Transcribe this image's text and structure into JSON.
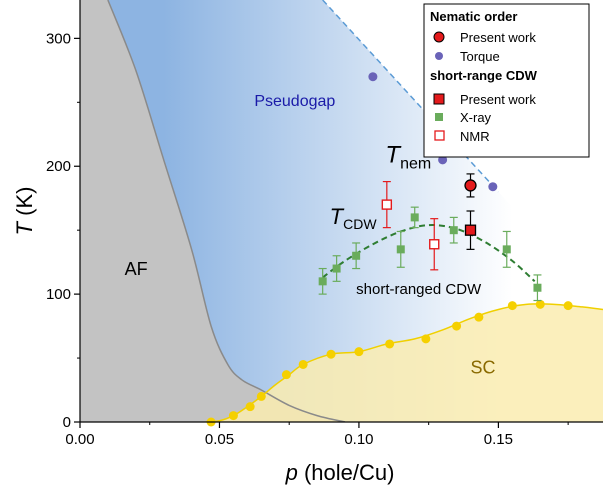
{
  "chart_data": {
    "type": "scatter",
    "x_axis": {
      "label_var": "p",
      "label_unit": " (hole/Cu)",
      "range": [
        0.0,
        0.1875
      ],
      "ticks": [
        0.0,
        0.05,
        0.1,
        0.15
      ],
      "tick_labels": [
        "0.00",
        "0.05",
        "0.10",
        "0.15"
      ]
    },
    "y_axis": {
      "label_var": "T",
      "label_unit": " (K)",
      "range": [
        0,
        330
      ],
      "ticks": [
        0,
        100,
        200,
        300
      ],
      "tick_labels": [
        "0",
        "100",
        "200",
        "300"
      ]
    },
    "grid": false,
    "regions": {
      "af": {
        "label": "AF",
        "boundary": [
          [
            0.01,
            330
          ],
          [
            0.02,
            275
          ],
          [
            0.03,
            205
          ],
          [
            0.04,
            135
          ],
          [
            0.047,
            75
          ],
          [
            0.053,
            45
          ],
          [
            0.058,
            33
          ],
          [
            0.065,
            25
          ],
          [
            0.075,
            13
          ],
          [
            0.085,
            5
          ],
          [
            0.095,
            0
          ]
        ]
      },
      "pseudogap": {
        "label": "Pseudogap",
        "boundary": [
          [
            0.087,
            330
          ],
          [
            0.15,
            180
          ]
        ]
      },
      "sc": {
        "label": "SC",
        "dome": [
          [
            0.045,
            0
          ],
          [
            0.05,
            1
          ],
          [
            0.055,
            5
          ],
          [
            0.06,
            12
          ],
          [
            0.065,
            20
          ],
          [
            0.07,
            29
          ],
          [
            0.075,
            37
          ],
          [
            0.08,
            45
          ],
          [
            0.09,
            53
          ],
          [
            0.1,
            55
          ],
          [
            0.11,
            61
          ],
          [
            0.12,
            65
          ],
          [
            0.13,
            72
          ],
          [
            0.14,
            81
          ],
          [
            0.15,
            88
          ],
          [
            0.16,
            92
          ],
          [
            0.17,
            92
          ],
          [
            0.18,
            90
          ],
          [
            0.1875,
            88
          ]
        ]
      }
    },
    "lines": {
      "t_nem": {
        "label_main": "T",
        "label_sub": "nem",
        "color": "#5b9bd5",
        "points": [
          [
            0.087,
            330
          ],
          [
            0.15,
            180
          ]
        ]
      },
      "t_cdw": {
        "label_main": "T",
        "label_sub": "CDW",
        "color": "#2e7d32",
        "points": [
          [
            0.087,
            113
          ],
          [
            0.095,
            126
          ],
          [
            0.105,
            139
          ],
          [
            0.115,
            149
          ],
          [
            0.125,
            154
          ],
          [
            0.135,
            151
          ],
          [
            0.145,
            141
          ],
          [
            0.155,
            126
          ],
          [
            0.163,
            110
          ]
        ]
      }
    },
    "region_text": {
      "cdw": "short-ranged CDW"
    },
    "series": [
      {
        "name": "Present work",
        "group": "Nematic order",
        "marker": "circle",
        "color": "#e41a1c",
        "edge": "#000000",
        "x": [
          0.14
        ],
        "y": [
          185
        ],
        "yerr": [
          9
        ]
      },
      {
        "name": "Torque",
        "group": "Nematic order",
        "marker": "circle",
        "color": "#6a63b8",
        "x": [
          0.105,
          0.13,
          0.148
        ],
        "y": [
          270,
          205,
          184
        ]
      },
      {
        "name": "Present work",
        "group": "short-range CDW",
        "marker": "square",
        "color": "#e41a1c",
        "edge": "#000000",
        "x": [
          0.14
        ],
        "y": [
          150
        ],
        "yerr": [
          15
        ]
      },
      {
        "name": "X-ray",
        "group": "short-range CDW",
        "marker": "square",
        "color": "#6aac5c",
        "x": [
          0.087,
          0.092,
          0.099,
          0.115,
          0.12,
          0.134,
          0.153,
          0.164
        ],
        "y": [
          110,
          120,
          130,
          135,
          160,
          150,
          135,
          105
        ],
        "yerr": [
          10,
          10,
          10,
          14,
          8,
          10,
          14,
          10
        ]
      },
      {
        "name": "NMR",
        "group": "short-range CDW",
        "marker": "square-open",
        "color": "#e41a1c",
        "x": [
          0.11,
          0.127
        ],
        "y": [
          170,
          139
        ],
        "yerr": [
          18,
          20
        ]
      },
      {
        "name": "SC",
        "marker": "circle",
        "color": "#f5d000",
        "x": [
          0.047,
          0.055,
          0.061,
          0.065,
          0.074,
          0.08,
          0.09,
          0.1,
          0.111,
          0.124,
          0.135,
          0.143,
          0.155,
          0.165,
          0.175
        ],
        "y": [
          0,
          5,
          12,
          20,
          37,
          45,
          53,
          55,
          61,
          65,
          75,
          82,
          91,
          92,
          91
        ]
      }
    ],
    "legend": {
      "placement": "top-right",
      "group1_title": "Nematic order",
      "group1_items": [
        "Present work",
        "Torque"
      ],
      "group2_title": "short-range CDW",
      "group2_items": [
        "Present work",
        "X-ray",
        "NMR"
      ]
    }
  },
  "colors": {
    "af_fill": "#c3c3c3",
    "pseudogap_fill": "#8db4e2",
    "sc_fill": "#faecb0",
    "sc_line": "#f0d000",
    "red": "#e41a1c",
    "green": "#6aac5c",
    "purple": "#6a63b8",
    "yellow": "#f5d000",
    "pseudogap_text": "#1a1aa8",
    "sc_text": "#8a6a00"
  }
}
